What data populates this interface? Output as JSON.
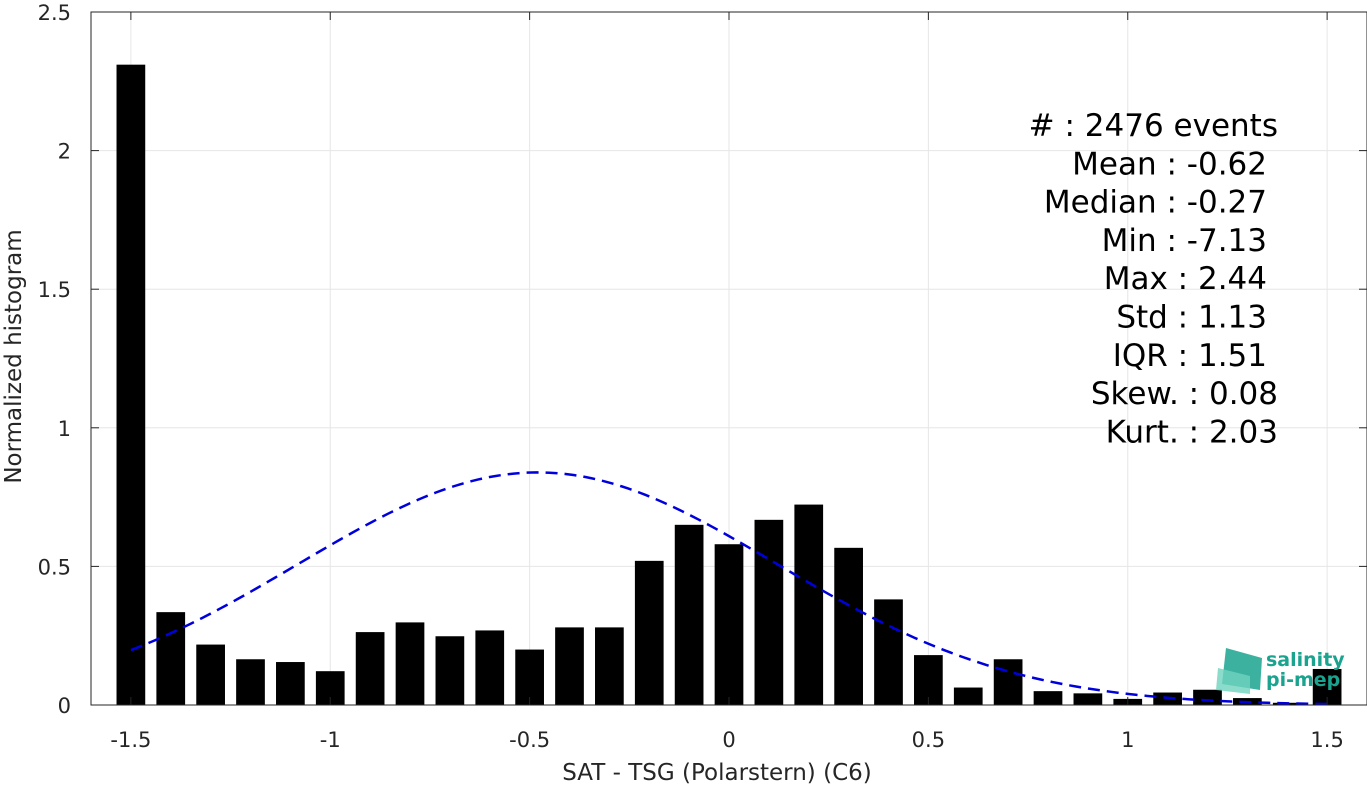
{
  "chart_data": {
    "type": "bar",
    "xlabel": "SAT - TSG (Polarstern) (C6)",
    "ylabel": "Normalized histogram",
    "xlim": [
      -1.6,
      1.6
    ],
    "ylim": [
      0,
      2.5
    ],
    "xticks": [
      -1.5,
      -1,
      -0.5,
      0,
      0.5,
      1,
      1.5
    ],
    "xtick_labels": [
      "-1.5",
      "-1",
      "-0.5",
      "0",
      "0.5",
      "1",
      "1.5"
    ],
    "yticks": [
      0,
      0.5,
      1,
      1.5,
      2,
      2.5
    ],
    "ytick_labels": [
      "0",
      "0.5",
      "1",
      "1.5",
      "2",
      "2.5"
    ],
    "grid": true,
    "bar_width": 0.072,
    "bar_color": "#000000",
    "bars": {
      "x": [
        -1.5,
        -1.4,
        -1.3,
        -1.2,
        -1.1,
        -1.0,
        -0.9,
        -0.8,
        -0.7,
        -0.6,
        -0.5,
        -0.4,
        -0.3,
        -0.2,
        -0.1,
        0.0,
        0.1,
        0.2,
        0.3,
        0.4,
        0.5,
        0.6,
        0.7,
        0.8,
        0.9,
        1.0,
        1.1,
        1.2,
        1.3,
        1.4,
        1.5
      ],
      "values": [
        2.31,
        0.335,
        0.218,
        0.165,
        0.155,
        0.122,
        0.263,
        0.298,
        0.248,
        0.269,
        0.2,
        0.28,
        0.28,
        0.52,
        0.65,
        0.58,
        0.668,
        0.723,
        0.567,
        0.381,
        0.18,
        0.063,
        0.165,
        0.05,
        0.042,
        0.022,
        0.045,
        0.055,
        0.025,
        0.008,
        0.13
      ]
    },
    "fit_curve": {
      "style": "dashed",
      "color": "#0000dd",
      "distribution": "normal",
      "mean": -0.48,
      "std": 0.6,
      "scale": 0.839,
      "x_range": [
        -1.5,
        1.5
      ]
    },
    "stats": [
      {
        "text": "#  : 2476 events"
      },
      {
        "text": "Mean : -0.62"
      },
      {
        "text": "Median : -0.27"
      },
      {
        "text": "Min : -7.13"
      },
      {
        "text": "Max : 2.44"
      },
      {
        "text": "Std : 1.13"
      },
      {
        "text": "IQR : 1.51"
      },
      {
        "text": "Skew. : 0.08"
      },
      {
        "text": "Kurt. : 2.03"
      }
    ]
  },
  "logo": {
    "line1": "salinity",
    "line2": "pi-mep",
    "color": "#1aa38e"
  }
}
